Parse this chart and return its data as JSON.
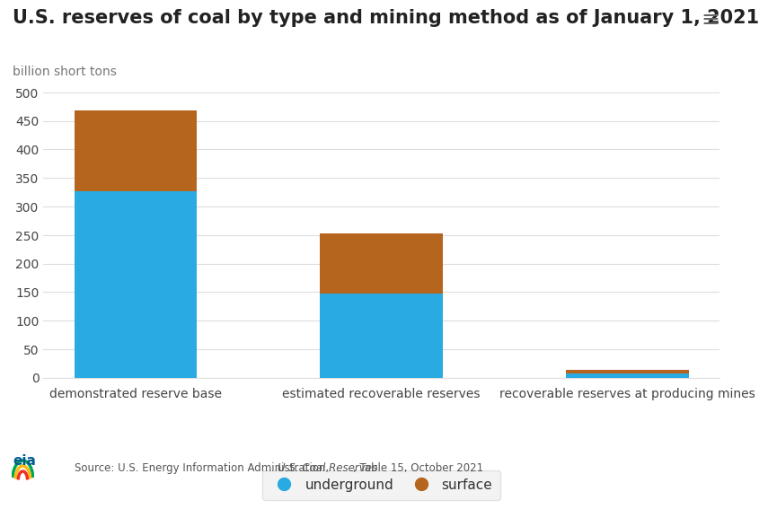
{
  "title": "U.S. reserves of coal by type and mining method as of January 1, 2021",
  "ylabel": "billion short tons",
  "categories": [
    "demonstrated reserve base",
    "estimated recoverable reserves",
    "recoverable reserves at producing mines"
  ],
  "underground": [
    326,
    148,
    7
  ],
  "surface": [
    143,
    105,
    6
  ],
  "underground_color": "#29ABE2",
  "surface_color": "#B5651D",
  "ylim": [
    0,
    500
  ],
  "yticks": [
    0,
    50,
    100,
    150,
    200,
    250,
    300,
    350,
    400,
    450,
    500
  ],
  "background_color": "#FFFFFF",
  "title_fontsize": 15,
  "ylabel_fontsize": 10,
  "legend_labels": [
    "underground",
    "surface"
  ],
  "source_text_regular": "Source: U.S. Energy Information Administration, ",
  "source_text_italic": "U.S. Coal Reserves",
  "source_text_end": ", Table 15, October 2021",
  "menu_icon": "≡",
  "tick_color": "#888888",
  "grid_color": "#DDDDDD",
  "title_color": "#222222",
  "label_color": "#777777"
}
